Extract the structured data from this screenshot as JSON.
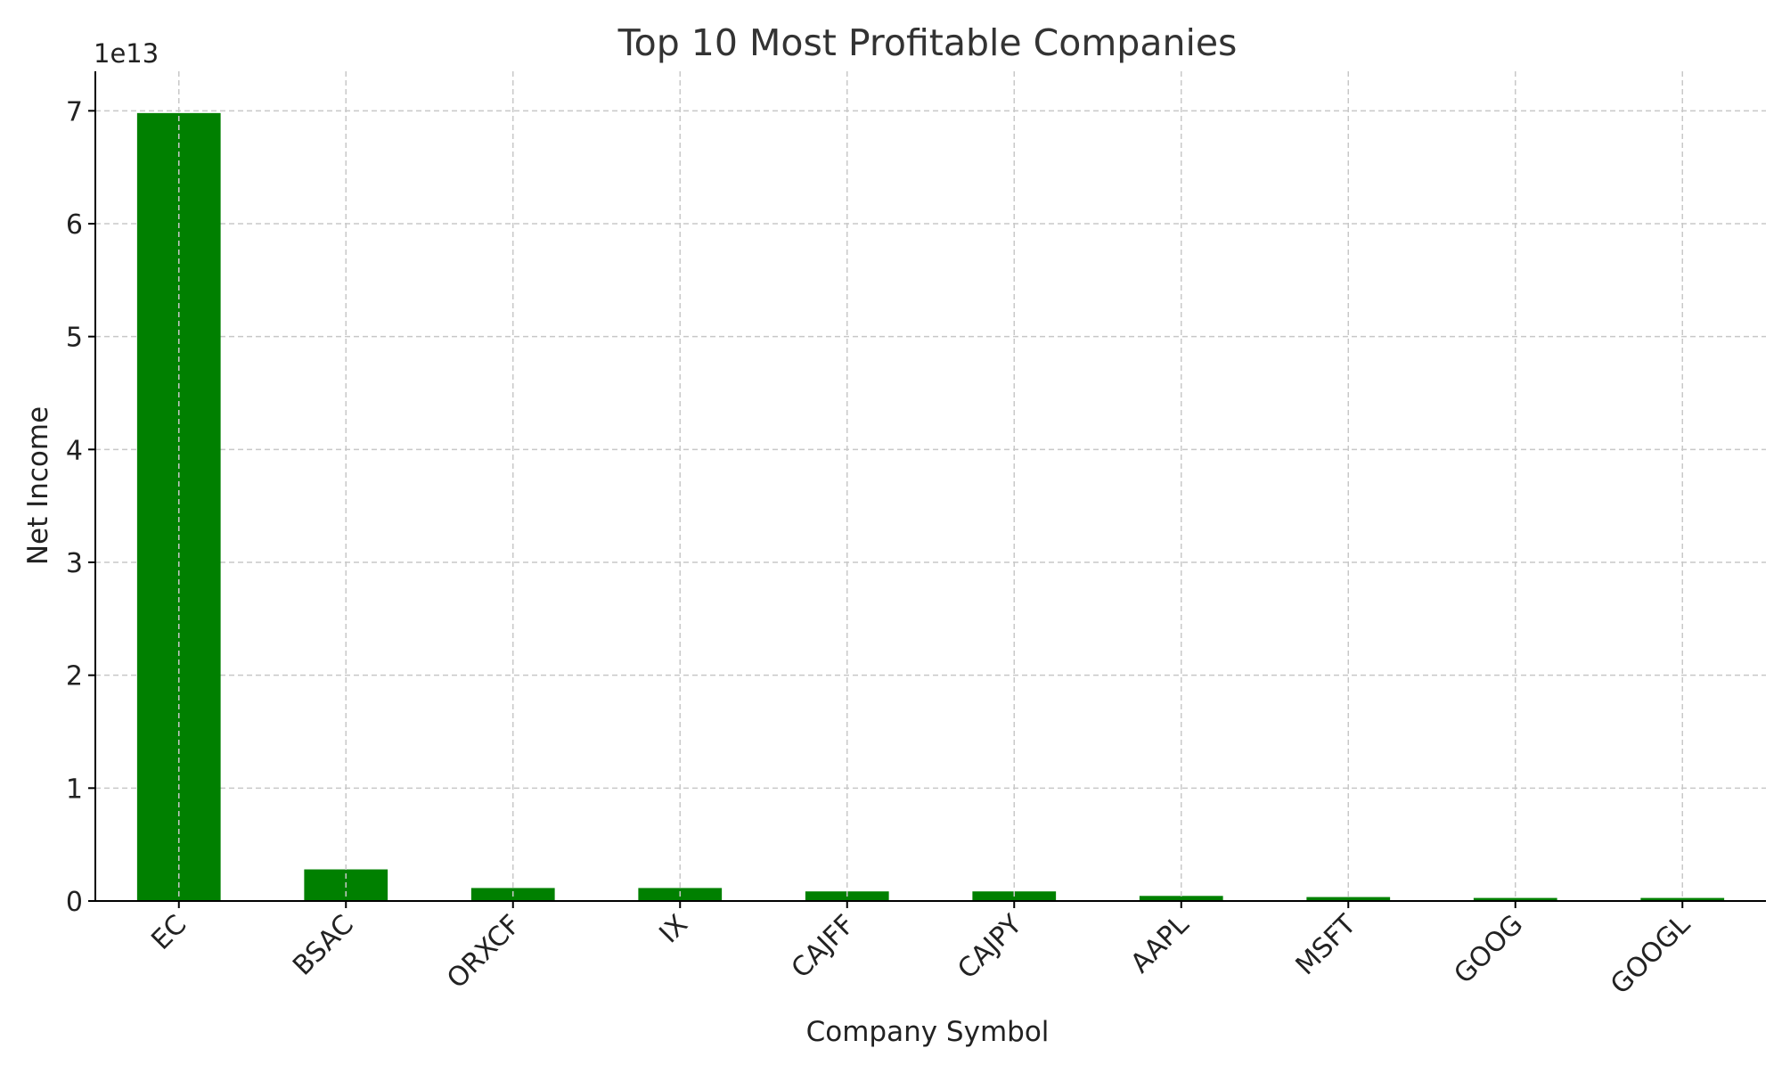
{
  "chart_data": {
    "type": "bar",
    "title": "Top 10 Most Profitable Companies",
    "xlabel": "Company Symbol",
    "ylabel": "Net Income",
    "y_offset_label": "1e13",
    "y_scale": 10000000000000.0,
    "ylim": [
      0,
      7.35
    ],
    "yticks": [
      0,
      1,
      2,
      3,
      4,
      5,
      6,
      7
    ],
    "ytick_labels": [
      "0",
      "1",
      "2",
      "3",
      "4",
      "5",
      "6",
      "7"
    ],
    "categories": [
      "EC",
      "BSAC",
      "ORXCF",
      "IX",
      "CAJFF",
      "CAJPY",
      "AAPL",
      "MSFT",
      "GOOG",
      "GOOGL"
    ],
    "values": [
      6.98,
      0.28,
      0.115,
      0.115,
      0.085,
      0.085,
      0.045,
      0.035,
      0.027,
      0.027
    ],
    "bar_color": "#008000",
    "grid": true,
    "legend": false
  }
}
